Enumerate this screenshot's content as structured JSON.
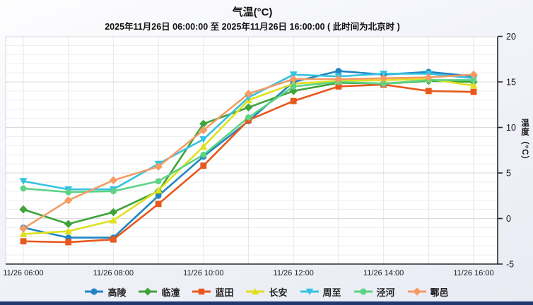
{
  "title": "气温(°C)",
  "subtitle": "2025年11月26日 06:00:00 至 2025年11月26日 16:00:00 ( 此时间为北京时 )",
  "chart_data": {
    "type": "line",
    "x_hours": [
      6,
      7,
      8,
      9,
      10,
      11,
      12,
      13,
      14,
      15,
      16
    ],
    "x_tick_hours": [
      6,
      8,
      10,
      12,
      14,
      16
    ],
    "x_tick_labels": [
      "11/26 06:00",
      "11/26 08:00",
      "11/26 10:00",
      "11/26 12:00",
      "11/26 14:00",
      "11/26 16:00"
    ],
    "ylabel": "温度（°C）",
    "ylim": [
      -5,
      20
    ],
    "y_ticks": [
      20,
      15,
      10,
      5,
      0,
      -5
    ],
    "grid": "on",
    "legend_position": "bottom",
    "series": [
      {
        "name": "高陵",
        "marker": "circle",
        "color": "#1f86c2",
        "values": [
          -1.0,
          -2.1,
          -2.1,
          2.5,
          6.8,
          10.7,
          15.0,
          16.2,
          15.8,
          16.1,
          15.6
        ]
      },
      {
        "name": "临潼",
        "marker": "diamond",
        "color": "#3fa33a",
        "values": [
          1.0,
          -0.6,
          0.7,
          3.0,
          10.4,
          12.2,
          14.0,
          14.9,
          14.8,
          15.1,
          15.0
        ]
      },
      {
        "name": "蓝田",
        "marker": "square",
        "color": "#e8571b",
        "values": [
          -2.5,
          -2.6,
          -2.3,
          1.6,
          5.8,
          10.8,
          12.9,
          14.5,
          14.7,
          14.0,
          13.9
        ]
      },
      {
        "name": "长安",
        "marker": "triangle",
        "color": "#e0e020",
        "values": [
          -1.7,
          -1.4,
          -0.2,
          3.1,
          7.9,
          13.0,
          14.8,
          15.1,
          15.2,
          15.3,
          14.6
        ]
      },
      {
        "name": "周至",
        "marker": "triangle-down",
        "color": "#35c2e2",
        "values": [
          4.1,
          3.2,
          3.2,
          6.0,
          8.7,
          13.3,
          15.8,
          15.6,
          15.9,
          15.9,
          15.4
        ]
      },
      {
        "name": "泾河",
        "marker": "circle",
        "color": "#5fd385",
        "values": [
          3.3,
          2.9,
          3.0,
          4.1,
          7.0,
          11.1,
          14.5,
          15.0,
          14.8,
          15.2,
          15.2
        ]
      },
      {
        "name": "鄠邑",
        "marker": "diamond",
        "color": "#f59b63",
        "values": [
          -1.1,
          2.0,
          4.2,
          5.7,
          9.7,
          13.7,
          15.3,
          15.3,
          15.4,
          15.5,
          15.8
        ]
      }
    ]
  }
}
